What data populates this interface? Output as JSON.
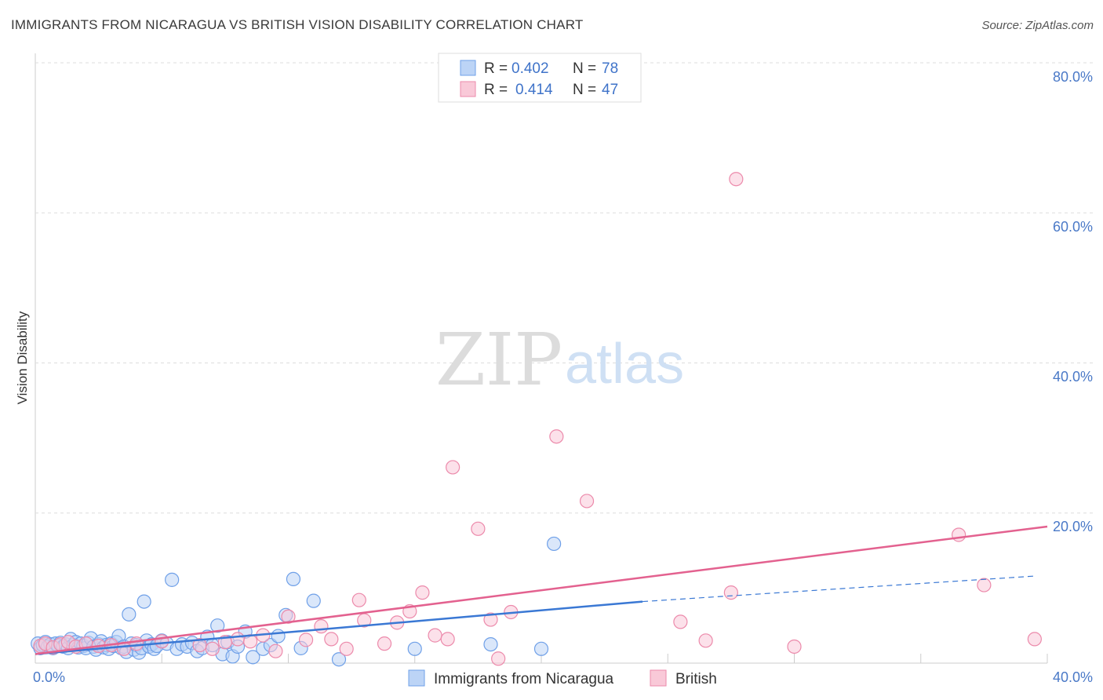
{
  "chart_data": {
    "type": "scatter",
    "title": "IMMIGRANTS FROM NICARAGUA VS BRITISH VISION DISABILITY CORRELATION CHART",
    "source": "Source: ZipAtlas.com",
    "ylabel": "Vision Disability",
    "xlabel": "",
    "xlim": [
      0,
      40
    ],
    "ylim": [
      0,
      80
    ],
    "x_tick_labels": [
      "0.0%",
      "40.0%"
    ],
    "y_tick_labels": [
      "80.0%",
      "60.0%",
      "40.0%",
      "20.0%"
    ],
    "y_tick_values": [
      80,
      60,
      40,
      20
    ],
    "grid": true,
    "watermark": {
      "zip": "ZIP",
      "atlas": "atlas"
    },
    "legend": {
      "r_label": "R =",
      "n_label": "N =",
      "entries": [
        {
          "name": "Immigrants from Nicaragua",
          "r": "0.402",
          "n": "78",
          "color": "#6fa0e8",
          "fill": "#bcd4f6"
        },
        {
          "name": "British",
          "r": "0.414",
          "n": "47",
          "color": "#ec8aab",
          "fill": "#f9c9d8"
        }
      ]
    },
    "series": [
      {
        "name": "Immigrants from Nicaragua",
        "color": "#6fa0e8",
        "trend": {
          "x0": 0,
          "y0": 1.2,
          "x1": 24,
          "y1": 8.2,
          "dash_x1": 39.5,
          "dash_y1": 11.6,
          "color": "#3a78d4"
        },
        "points": [
          [
            0.1,
            2.6
          ],
          [
            0.2,
            2.0
          ],
          [
            0.3,
            2.4
          ],
          [
            0.4,
            2.8
          ],
          [
            0.5,
            2.2
          ],
          [
            0.6,
            2.5
          ],
          [
            0.7,
            2.0
          ],
          [
            0.8,
            2.6
          ],
          [
            0.9,
            2.3
          ],
          [
            1.0,
            2.7
          ],
          [
            1.1,
            2.2
          ],
          [
            1.2,
            2.5
          ],
          [
            1.3,
            2.0
          ],
          [
            1.4,
            3.2
          ],
          [
            1.5,
            2.4
          ],
          [
            1.6,
            2.8
          ],
          [
            1.7,
            2.1
          ],
          [
            1.8,
            2.6
          ],
          [
            1.9,
            2.3
          ],
          [
            2.0,
            2.0
          ],
          [
            2.1,
            2.7
          ],
          [
            2.2,
            3.3
          ],
          [
            2.3,
            2.2
          ],
          [
            2.4,
            1.8
          ],
          [
            2.5,
            2.5
          ],
          [
            2.6,
            2.9
          ],
          [
            2.7,
            2.1
          ],
          [
            2.8,
            2.4
          ],
          [
            2.9,
            1.9
          ],
          [
            3.0,
            2.6
          ],
          [
            3.1,
            2.3
          ],
          [
            3.2,
            2.8
          ],
          [
            3.3,
            3.6
          ],
          [
            3.4,
            2.0
          ],
          [
            3.5,
            2.2
          ],
          [
            3.6,
            1.5
          ],
          [
            3.7,
            6.5
          ],
          [
            3.8,
            2.6
          ],
          [
            3.9,
            1.8
          ],
          [
            4.0,
            2.4
          ],
          [
            4.1,
            1.4
          ],
          [
            4.2,
            2.0
          ],
          [
            4.3,
            8.2
          ],
          [
            4.4,
            3.0
          ],
          [
            4.5,
            2.2
          ],
          [
            4.6,
            2.5
          ],
          [
            4.7,
            1.9
          ],
          [
            4.8,
            2.3
          ],
          [
            5.0,
            3.0
          ],
          [
            5.2,
            2.6
          ],
          [
            5.4,
            11.1
          ],
          [
            5.6,
            1.9
          ],
          [
            5.8,
            2.5
          ],
          [
            6.0,
            2.2
          ],
          [
            6.2,
            2.7
          ],
          [
            6.4,
            1.6
          ],
          [
            6.6,
            2.0
          ],
          [
            6.8,
            3.5
          ],
          [
            7.0,
            2.4
          ],
          [
            7.2,
            5.0
          ],
          [
            7.4,
            1.2
          ],
          [
            7.6,
            2.8
          ],
          [
            7.8,
            0.9
          ],
          [
            8.0,
            2.2
          ],
          [
            8.3,
            4.2
          ],
          [
            8.6,
            0.8
          ],
          [
            9.0,
            1.9
          ],
          [
            9.3,
            2.4
          ],
          [
            9.6,
            3.6
          ],
          [
            9.9,
            6.4
          ],
          [
            10.2,
            11.2
          ],
          [
            10.5,
            2.0
          ],
          [
            11.0,
            8.3
          ],
          [
            12.0,
            0.5
          ],
          [
            15.0,
            1.9
          ],
          [
            18.0,
            2.5
          ],
          [
            20.0,
            1.9
          ],
          [
            20.5,
            15.9
          ]
        ]
      },
      {
        "name": "British",
        "color": "#ec8aab",
        "trend": {
          "x0": 0,
          "y0": 1.2,
          "x1": 40,
          "y1": 18.2,
          "color": "#e3618f"
        },
        "points": [
          [
            0.2,
            2.3
          ],
          [
            0.4,
            2.6
          ],
          [
            0.7,
            2.1
          ],
          [
            1.0,
            2.5
          ],
          [
            1.3,
            2.8
          ],
          [
            1.6,
            2.2
          ],
          [
            2.0,
            2.6
          ],
          [
            2.5,
            2.3
          ],
          [
            3.0,
            2.4
          ],
          [
            3.5,
            1.9
          ],
          [
            4.0,
            2.6
          ],
          [
            5.0,
            2.9
          ],
          [
            6.5,
            2.4
          ],
          [
            7.0,
            1.9
          ],
          [
            7.5,
            2.8
          ],
          [
            8.0,
            3.2
          ],
          [
            8.5,
            2.9
          ],
          [
            9.0,
            3.7
          ],
          [
            9.5,
            1.6
          ],
          [
            10.0,
            6.2
          ],
          [
            10.7,
            3.1
          ],
          [
            11.3,
            4.9
          ],
          [
            11.7,
            3.2
          ],
          [
            12.3,
            1.9
          ],
          [
            12.8,
            8.4
          ],
          [
            13.0,
            5.7
          ],
          [
            13.8,
            2.6
          ],
          [
            14.3,
            5.4
          ],
          [
            14.8,
            6.9
          ],
          [
            15.3,
            9.4
          ],
          [
            15.8,
            3.7
          ],
          [
            16.3,
            3.2
          ],
          [
            16.5,
            26.1
          ],
          [
            17.5,
            17.9
          ],
          [
            18.0,
            5.8
          ],
          [
            18.3,
            0.6
          ],
          [
            18.8,
            6.8
          ],
          [
            20.6,
            30.2
          ],
          [
            21.8,
            21.6
          ],
          [
            25.5,
            5.5
          ],
          [
            26.5,
            3.0
          ],
          [
            27.5,
            9.4
          ],
          [
            27.7,
            64.5
          ],
          [
            30.0,
            2.2
          ],
          [
            36.5,
            17.1
          ],
          [
            37.5,
            10.4
          ],
          [
            39.5,
            3.2
          ]
        ]
      }
    ]
  }
}
